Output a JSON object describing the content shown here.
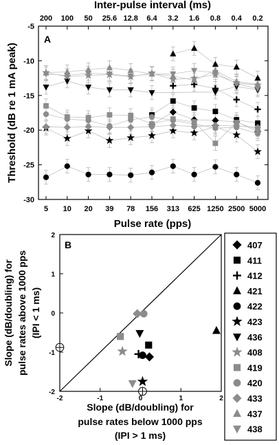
{
  "colors": {
    "black": "#000000",
    "gray": "#8c8c8c",
    "errorbar": "#b4b4b4",
    "line": "#c0c0c0"
  },
  "chart_data": [
    {
      "panel": "A",
      "type": "scatter",
      "top_axis_label": "Inter-pulse interval (ms)",
      "top_tick_labels": [
        "200",
        "100",
        "50",
        "25.6",
        "12.8",
        "6.4",
        "3.2",
        "1.6",
        "0.8",
        "0.4",
        "0.2"
      ],
      "xlabel": "Pulse rate (pps)",
      "ylabel": "Threshold (dB re 1 mA peak)",
      "categories": [
        "5",
        "10",
        "20",
        "39",
        "78",
        "156",
        "313",
        "625",
        "1250",
        "2500",
        "5000"
      ],
      "yticks": [
        -5,
        -10,
        -15,
        -20,
        -25,
        -30
      ],
      "ylim": [
        -30,
        -5
      ],
      "series": [
        {
          "name": "422",
          "marker": "circle",
          "color": "black",
          "values": [
            -26.8,
            -25.2,
            -26.4,
            -26.4,
            -26.5,
            -26.1,
            -25.2,
            -26.4,
            -25.3,
            -26.4,
            -27.6
          ]
        },
        {
          "name": "423",
          "marker": "star",
          "color": "black",
          "values": [
            -19.7,
            -21.2,
            -20.1,
            -21.5,
            -21.1,
            -20.8,
            -20.1,
            -20.4,
            -19.5,
            -20.7,
            -23.1
          ]
        },
        {
          "name": "436",
          "marker": "triangle-down",
          "color": "black",
          "values": [
            -13.8,
            -12.9,
            -13.8,
            -14.2,
            -14.2,
            -14.6,
            null,
            null,
            -14.5,
            -13.7,
            -14.2
          ]
        },
        {
          "name": "412",
          "marker": "plus",
          "color": "black",
          "values": [
            null,
            null,
            null,
            null,
            null,
            null,
            -13.6,
            -13.4,
            -14.0,
            -15.6,
            -17.0
          ]
        },
        {
          "name": "411",
          "marker": "square",
          "color": "black",
          "values": [
            null,
            null,
            null,
            null,
            null,
            -17.8,
            -15.8,
            -16.8,
            -17.3,
            -18.5,
            -19.0
          ]
        },
        {
          "name": "407",
          "marker": "diamond",
          "color": "black",
          "values": [
            null,
            null,
            null,
            null,
            null,
            -19.2,
            -17.4,
            -18.5,
            -18.6,
            -18.8,
            -20.2
          ]
        },
        {
          "name": "421",
          "marker": "triangle-up",
          "color": "black",
          "values": [
            null,
            null,
            null,
            null,
            null,
            null,
            -9.0,
            -8.2,
            -10.5,
            -10.9,
            -12.5
          ]
        },
        {
          "name": "438",
          "marker": "triangle-down",
          "color": "gray",
          "values": [
            -11.9,
            -12.1,
            -11.8,
            -11.9,
            -12.2,
            -11.9,
            -11.9,
            -11.4,
            -11.7,
            -13.3,
            -14.0
          ]
        },
        {
          "name": "437",
          "marker": "triangle-up",
          "color": "gray",
          "values": [
            -11.7,
            -11.6,
            -11.3,
            -11.0,
            -11.4,
            -11.9,
            -12.2,
            -12.8,
            -11.4,
            -13.0,
            -13.4
          ]
        },
        {
          "name": "408",
          "marker": "star",
          "color": "gray",
          "values": [
            -11.7,
            -12.3,
            -12.1,
            -12.0,
            -12.3,
            -11.8,
            -12.7,
            -12.5,
            -12.0,
            -13.2,
            -13.5
          ]
        },
        {
          "name": "419",
          "marker": "square",
          "color": "gray",
          "values": [
            -16.5,
            -18.1,
            -18.2,
            -17.8,
            -17.9,
            -19.1,
            -18.4,
            -18.8,
            -21.9,
            -18.9,
            -19.9
          ]
        },
        {
          "name": "420",
          "marker": "circle",
          "color": "gray",
          "values": [
            -17.7,
            -18.4,
            -18.6,
            -19.4,
            -18.5,
            -18.1,
            -18.6,
            -19.1,
            -19.7,
            -19.6,
            -20.5
          ]
        },
        {
          "name": "433",
          "marker": "diamond",
          "color": "gray",
          "values": [
            -19.5,
            -19.6,
            -19.5,
            -19.6,
            -19.6,
            -19.5,
            -19.3,
            -19.5,
            -19.3,
            -19.4,
            -19.6
          ]
        }
      ]
    },
    {
      "panel": "B",
      "type": "scatter",
      "xlabel_lines": [
        "Slope (dB/doubling) for",
        "pulse rates below 1000 pps",
        "(IPI > 1 ms)"
      ],
      "ylabel_lines": [
        "Slope (dB/doubling) for",
        "pulse rates above 1000 pps",
        "(IPI < 1 ms)"
      ],
      "xlim": [
        -2,
        2
      ],
      "ylim": [
        -2,
        2
      ],
      "xticks": [
        "-2",
        "-1",
        "0",
        "1",
        "2"
      ],
      "yticks": [
        "2",
        "1",
        "0",
        "-1",
        "-2"
      ],
      "identity_line": true,
      "points": [
        {
          "name": "407",
          "marker": "diamond",
          "color": "black",
          "x": 0.22,
          "y": -1.12
        },
        {
          "name": "411",
          "marker": "square",
          "color": "black",
          "x": 0.2,
          "y": -0.82
        },
        {
          "name": "412",
          "marker": "plus",
          "color": "black",
          "x": -0.05,
          "y": -1.05
        },
        {
          "name": "421",
          "marker": "triangle-up",
          "color": "black",
          "x": 1.88,
          "y": -0.45
        },
        {
          "name": "422",
          "marker": "circle",
          "color": "black",
          "x": 0.05,
          "y": -1.08
        },
        {
          "name": "423",
          "marker": "star",
          "color": "black",
          "x": 0.05,
          "y": -1.75
        },
        {
          "name": "436",
          "marker": "triangle-down",
          "color": "black",
          "x": -0.02,
          "y": -0.52
        },
        {
          "name": "408",
          "marker": "star",
          "color": "gray",
          "x": -0.45,
          "y": -0.98
        },
        {
          "name": "419",
          "marker": "square",
          "color": "gray",
          "x": -0.5,
          "y": -0.6
        },
        {
          "name": "420",
          "marker": "circle",
          "color": "gray",
          "x": 0.08,
          "y": -0.02
        },
        {
          "name": "433",
          "marker": "diamond",
          "color": "gray",
          "x": -0.08,
          "y": -0.02
        },
        {
          "name": "438",
          "marker": "triangle-down",
          "color": "gray",
          "x": -0.2,
          "y": -1.8
        },
        {
          "name": "clipped-1",
          "marker": "circle-plus",
          "color": "black",
          "x": -2.0,
          "y": -0.88
        },
        {
          "name": "clipped-2",
          "marker": "circle-plus",
          "color": "black",
          "x": 0.05,
          "y": -2.0
        }
      ]
    }
  ],
  "legend": [
    {
      "label": "407",
      "marker": "diamond",
      "color": "black"
    },
    {
      "label": "411",
      "marker": "square",
      "color": "black"
    },
    {
      "label": "412",
      "marker": "plus",
      "color": "black"
    },
    {
      "label": "421",
      "marker": "triangle-up",
      "color": "black"
    },
    {
      "label": "422",
      "marker": "circle",
      "color": "black"
    },
    {
      "label": "423",
      "marker": "star",
      "color": "black"
    },
    {
      "label": "436",
      "marker": "triangle-down",
      "color": "black"
    },
    {
      "label": "408",
      "marker": "star",
      "color": "gray"
    },
    {
      "label": "419",
      "marker": "square",
      "color": "gray"
    },
    {
      "label": "420",
      "marker": "circle",
      "color": "gray"
    },
    {
      "label": "433",
      "marker": "diamond",
      "color": "gray"
    },
    {
      "label": "437",
      "marker": "triangle-up",
      "color": "gray"
    },
    {
      "label": "438",
      "marker": "triangle-down",
      "color": "gray"
    }
  ]
}
